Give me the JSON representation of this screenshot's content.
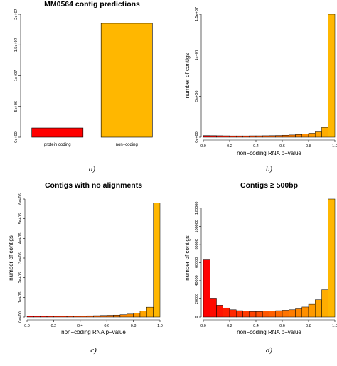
{
  "chart_data": [
    {
      "type": "bar",
      "title": "MM0564 contig predictions",
      "xlabel": "",
      "ylabel": "",
      "panel_label": "a)",
      "categories": [
        "protein coding",
        "non−coding"
      ],
      "values": [
        1500000,
        18500000
      ],
      "colors": [
        "#ff0000",
        "#ffb700"
      ],
      "ylim": [
        0,
        20000000
      ],
      "yticks": [
        0,
        5000000,
        10000000,
        15000000,
        20000000
      ],
      "ytick_labels": [
        "0e+00",
        "5e+06",
        "1e+07",
        "1.5e+07",
        "2e+07"
      ],
      "grid": false
    },
    {
      "type": "histogram",
      "title": "",
      "xlabel": "non−coding RNA p−value",
      "ylabel": "number of contigs",
      "panel_label": "b)",
      "bin_start": 0,
      "bin_width": 0.05,
      "values": [
        200000,
        190000,
        180000,
        170000,
        160000,
        160000,
        160000,
        170000,
        170000,
        180000,
        190000,
        210000,
        240000,
        270000,
        320000,
        380000,
        480000,
        650000,
        1200000,
        15000000
      ],
      "xlim": [
        0,
        1
      ],
      "xticks": [
        0,
        0.2,
        0.4,
        0.6,
        0.8,
        1
      ],
      "xtick_labels": [
        "0.0",
        "0.2",
        "0.4",
        "0.6",
        "0.8",
        "1.0"
      ],
      "ylim": [
        0,
        15000000
      ],
      "yticks": [
        0,
        5000000,
        10000000,
        15000000
      ],
      "ytick_labels": [
        "0e+00",
        "5e+06",
        "1e+07",
        "1.5e+07"
      ],
      "color_low": "#ff0000",
      "color_high": "#ffb700",
      "grid": false
    },
    {
      "type": "histogram",
      "title": "Contigs with no alignments",
      "xlabel": "non−coding RNA p−value",
      "ylabel": "number of contigs",
      "panel_label": "c)",
      "bin_start": 0,
      "bin_width": 0.05,
      "values": [
        60000,
        55000,
        52000,
        50000,
        50000,
        50000,
        52000,
        55000,
        60000,
        65000,
        70000,
        80000,
        90000,
        100000,
        120000,
        150000,
        200000,
        300000,
        500000,
        5800000
      ],
      "xlim": [
        0,
        1
      ],
      "xticks": [
        0,
        0.2,
        0.4,
        0.6,
        0.8,
        1
      ],
      "xtick_labels": [
        "0.0",
        "0.2",
        "0.4",
        "0.6",
        "0.8",
        "1.0"
      ],
      "ylim": [
        0,
        6000000
      ],
      "yticks": [
        0,
        1000000,
        2000000,
        3000000,
        4000000,
        5000000,
        6000000
      ],
      "ytick_labels": [
        "0e+00",
        "1e+06",
        "2e+06",
        "3e+06",
        "4e+06",
        "5e+06",
        "6e+06"
      ],
      "color_low": "#ff0000",
      "color_high": "#ffb700",
      "grid": false
    },
    {
      "type": "histogram",
      "title": "Contigs ≥ 500bp",
      "xlabel": "non−coding RNA p−value",
      "ylabel": "number of contigs",
      "panel_label": "d)",
      "bin_start": 0,
      "bin_width": 0.05,
      "values": [
        63000,
        20000,
        13000,
        10000,
        8000,
        7000,
        6500,
        6000,
        6000,
        6500,
        6500,
        7000,
        7500,
        8000,
        9000,
        11000,
        14000,
        19000,
        30000,
        130000
      ],
      "xlim": [
        0,
        1
      ],
      "xticks": [
        0,
        0.2,
        0.4,
        0.6,
        0.8,
        1
      ],
      "xtick_labels": [
        "0.0",
        "0.2",
        "0.4",
        "0.6",
        "0.8",
        "1.0"
      ],
      "ylim": [
        0,
        130000
      ],
      "yticks": [
        0,
        20000,
        40000,
        60000,
        80000,
        100000,
        120000
      ],
      "ytick_labels": [
        "0",
        "20000",
        "40000",
        "60000",
        "80000",
        "100000",
        "120000"
      ],
      "color_low": "#ff0000",
      "color_high": "#ffb700",
      "grid": false
    }
  ]
}
